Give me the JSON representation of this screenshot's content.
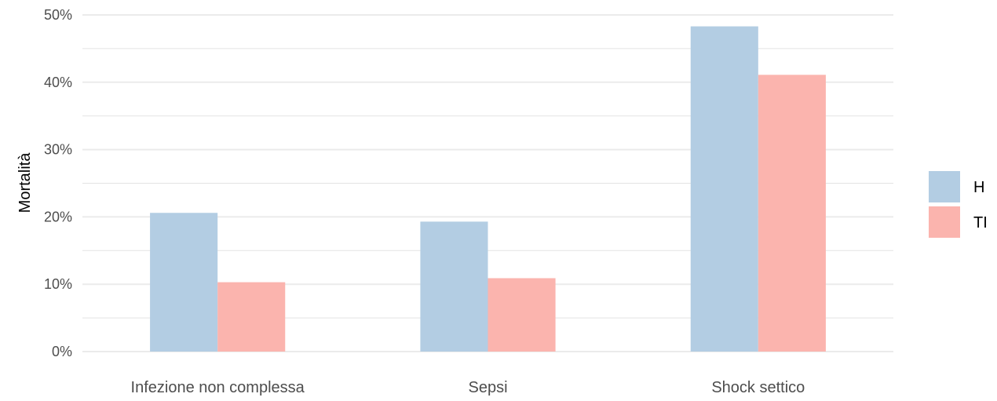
{
  "chart_data": {
    "type": "bar",
    "title": "",
    "xlabel": "",
    "ylabel": "Mortalità",
    "categories": [
      "Infezione non complessa",
      "Sepsi",
      "Shock settico"
    ],
    "series": [
      {
        "name": "H",
        "values": [
          20.6,
          19.3,
          48.3
        ],
        "color": "#b3cde3"
      },
      {
        "name": "TI",
        "values": [
          10.3,
          10.9,
          41.1
        ],
        "color": "#fbb4ae"
      }
    ],
    "ylim": [
      0,
      50
    ],
    "yticks": [
      0,
      10,
      20,
      30,
      40,
      50
    ],
    "ytick_labels": [
      "0%",
      "10%",
      "20%",
      "30%",
      "40%",
      "50%"
    ],
    "grid": true,
    "legend_position": "right"
  }
}
